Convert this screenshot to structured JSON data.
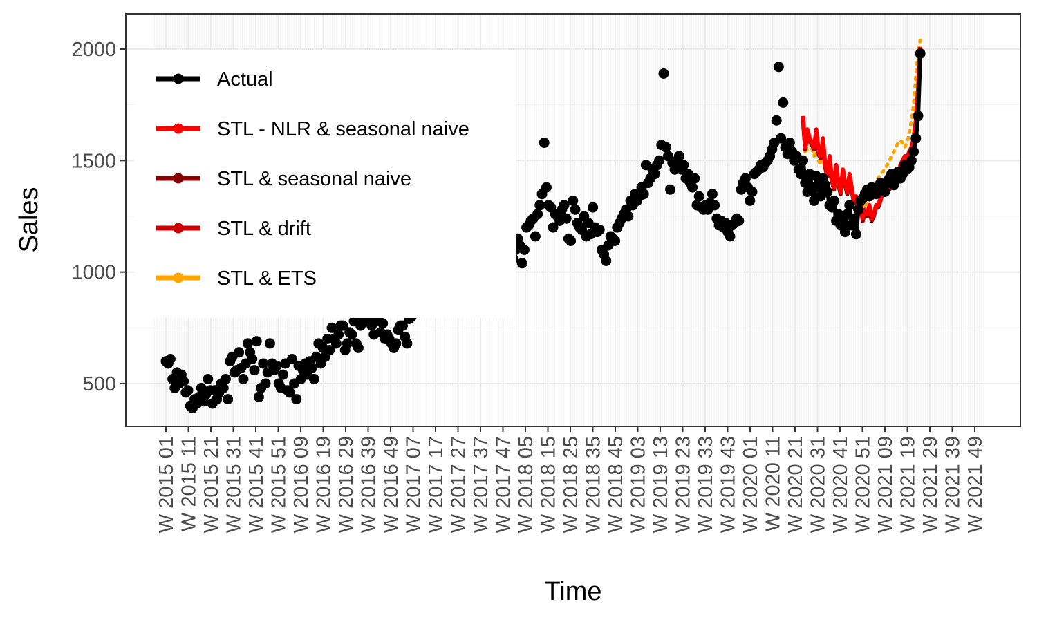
{
  "chart_data": {
    "type": "line",
    "title": "",
    "xlabel": "Time",
    "ylabel": "Sales",
    "ylim": [
      300,
      2150
    ],
    "y_ticks": [
      500,
      1000,
      1500,
      2000
    ],
    "x_tick_labels": [
      "W 2015 01",
      "W 2015 11",
      "W 2015 21",
      "W 2015 31",
      "W 2015 41",
      "W 2015 51",
      "W 2016 09",
      "W 2016 19",
      "W 2016 29",
      "W 2016 39",
      "W 2016 49",
      "W 2017 07",
      "W 2017 17",
      "W 2017 27",
      "W 2017 37",
      "W 2017 47",
      "W 2018 05",
      "W 2018 15",
      "W 2018 25",
      "W 2018 35",
      "W 2018 45",
      "W 2019 03",
      "W 2019 13",
      "W 2019 23",
      "W 2019 33",
      "W 2019 43",
      "W 2020 01",
      "W 2020 11",
      "W 2020 21",
      "W 2020 31",
      "W 2020 41",
      "W 2020 51",
      "W 2021 09",
      "W 2021 19",
      "W 2021 29",
      "W 2021 39",
      "W 2021 49"
    ],
    "grid": true,
    "legend_position": "top-left",
    "series": [
      {
        "name": "Actual",
        "color": "#000000",
        "style": "points-and-line",
        "values": [
          600,
          590,
          610,
          520,
          480,
          550,
          500,
          540,
          510,
          460,
          470,
          400,
          390,
          430,
          410,
          440,
          480,
          420,
          450,
          520,
          470,
          410,
          470,
          430,
          460,
          500,
          480,
          520,
          430,
          600,
          620,
          550,
          560,
          640,
          570,
          520,
          590,
          680,
          640,
          610,
          560,
          690,
          440,
          480,
          590,
          500,
          550,
          680,
          590,
          560,
          580,
          500,
          480,
          540,
          590,
          470,
          460,
          610,
          500,
          430,
          580,
          520,
          560,
          590,
          540,
          600,
          570,
          520,
          620,
          680,
          590,
          660,
          620,
          700,
          650,
          750,
          700,
          680,
          720,
          760,
          760,
          650,
          680,
          730,
          720,
          780,
          680,
          660,
          760,
          800,
          790,
          800,
          780,
          760,
          720,
          780,
          800,
          730,
          770,
          700,
          720,
          700,
          680,
          660,
          680,
          740,
          760,
          760,
          710,
          680,
          790,
          800,
          830,
          880,
          900,
          950,
          1040,
          1000,
          1100,
          1120,
          1220,
          1070,
          1040,
          980,
          1000,
          1050,
          1080,
          1060,
          960,
          1000,
          1000,
          960,
          1090,
          1020,
          970,
          980,
          960,
          920,
          1000,
          990,
          1000,
          870,
          900,
          880,
          950,
          960,
          820,
          940,
          960,
          900,
          920,
          980,
          940,
          970,
          1010,
          1030,
          1080,
          1060,
          1100,
          1150,
          1120,
          1040,
          1100,
          1200,
          1210,
          1230,
          1240,
          1160,
          1260,
          1300,
          1350,
          1580,
          1380,
          1300,
          1290,
          1200,
          1260,
          1250,
          1230,
          1280,
          1300,
          1240,
          1150,
          1140,
          1320,
          1280,
          1220,
          1200,
          1190,
          1250,
          1160,
          1220,
          1170,
          1290,
          1200,
          1180,
          1190,
          1100,
          1080,
          1050,
          1120,
          1160,
          1150,
          1140,
          1200,
          1220,
          1240,
          1260,
          1280,
          1250,
          1320,
          1300,
          1350,
          1320,
          1340,
          1380,
          1350,
          1480,
          1400,
          1420,
          1460,
          1440,
          1480,
          1500,
          1570,
          1890,
          1560,
          1520,
          1370,
          1490,
          1460,
          1500,
          1520,
          1460,
          1480,
          1420,
          1440,
          1400,
          1380,
          1420,
          1300,
          1340,
          1290,
          1280,
          1300,
          1280,
          1310,
          1350,
          1300,
          1240,
          1210,
          1230,
          1200,
          1220,
          1180,
          1160,
          1210,
          1220,
          1240,
          1230,
          1370,
          1400,
          1420,
          1380,
          1320,
          1360,
          1440,
          1450,
          1460,
          1480,
          1470,
          1490,
          1500,
          1520,
          1550,
          1580,
          1680,
          1920,
          1600,
          1760,
          1560,
          1530,
          1580,
          1540,
          1500,
          1520,
          1460,
          1440,
          1500,
          1400,
          1360,
          1440,
          1380,
          1320,
          1430,
          1380,
          1340,
          1420,
          1390,
          1360,
          1300,
          1290,
          1320,
          1230,
          1260,
          1210,
          1250,
          1180,
          1260,
          1300,
          1210,
          1240,
          1170,
          1280,
          1320,
          1330,
          1350,
          1370,
          1340,
          1380,
          1360,
          1350,
          1360,
          1400,
          1390,
          1360,
          1400,
          1420,
          1440,
          1390,
          1430,
          1450,
          1420,
          1440,
          1480,
          1460,
          1470,
          1500,
          1540,
          1600,
          1700,
          1980
        ]
      },
      {
        "name": "STL - NLR & seasonal naive",
        "color": "#ff0000",
        "style": "line",
        "values": [
          1700,
          1560,
          1640,
          1600,
          1580,
          1560,
          1640,
          1540,
          1520,
          1600,
          1480,
          1440,
          1520,
          1420,
          1380,
          1480,
          1400,
          1360,
          1460,
          1400,
          1360,
          1440,
          1380,
          1320,
          1340,
          1300,
          1320,
          1240,
          1280,
          1260,
          1300,
          1240,
          1260,
          1300,
          1300,
          1330,
          1370,
          1360,
          1400,
          1380,
          1420,
          1440,
          1460,
          1420,
          1480,
          1500,
          1520,
          1510,
          1540,
          1560,
          1600,
          1680,
          1820,
          2010
        ]
      },
      {
        "name": "STL & seasonal naive",
        "color": "#8b0000",
        "style": "line",
        "values": [
          1680,
          1550,
          1620,
          1590,
          1570,
          1550,
          1620,
          1530,
          1510,
          1590,
          1470,
          1430,
          1510,
          1410,
          1370,
          1470,
          1390,
          1350,
          1450,
          1390,
          1350,
          1430,
          1370,
          1310,
          1330,
          1290,
          1310,
          1230,
          1270,
          1250,
          1290,
          1230,
          1250,
          1290,
          1290,
          1320,
          1360,
          1350,
          1390,
          1370,
          1410,
          1430,
          1450,
          1410,
          1470,
          1490,
          1510,
          1500,
          1530,
          1550,
          1590,
          1670,
          1810,
          2000
        ]
      },
      {
        "name": "STL & drift",
        "color": "#cc0000",
        "style": "line",
        "values": [
          1690,
          1555,
          1630,
          1595,
          1575,
          1555,
          1630,
          1535,
          1515,
          1595,
          1475,
          1435,
          1515,
          1415,
          1375,
          1475,
          1395,
          1355,
          1455,
          1395,
          1355,
          1435,
          1375,
          1315,
          1335,
          1295,
          1315,
          1235,
          1275,
          1255,
          1295,
          1235,
          1255,
          1295,
          1295,
          1325,
          1365,
          1355,
          1395,
          1375,
          1415,
          1435,
          1455,
          1415,
          1475,
          1495,
          1515,
          1505,
          1535,
          1555,
          1595,
          1675,
          1815,
          2005
        ]
      },
      {
        "name": "STL & ETS",
        "color": "#ffa500",
        "style": "dotted",
        "values": [
          1650,
          1530,
          1560,
          1580,
          1550,
          1520,
          1560,
          1500,
          1480,
          1520,
          1460,
          1420,
          1460,
          1400,
          1380,
          1440,
          1400,
          1370,
          1420,
          1380,
          1360,
          1420,
          1380,
          1340,
          1340,
          1300,
          1320,
          1280,
          1300,
          1310,
          1320,
          1340,
          1350,
          1380,
          1420,
          1440,
          1450,
          1460,
          1480,
          1500,
          1520,
          1540,
          1560,
          1580,
          1590,
          1580,
          1560,
          1580,
          1620,
          1680,
          1750,
          1880,
          1990,
          2040
        ]
      }
    ]
  }
}
